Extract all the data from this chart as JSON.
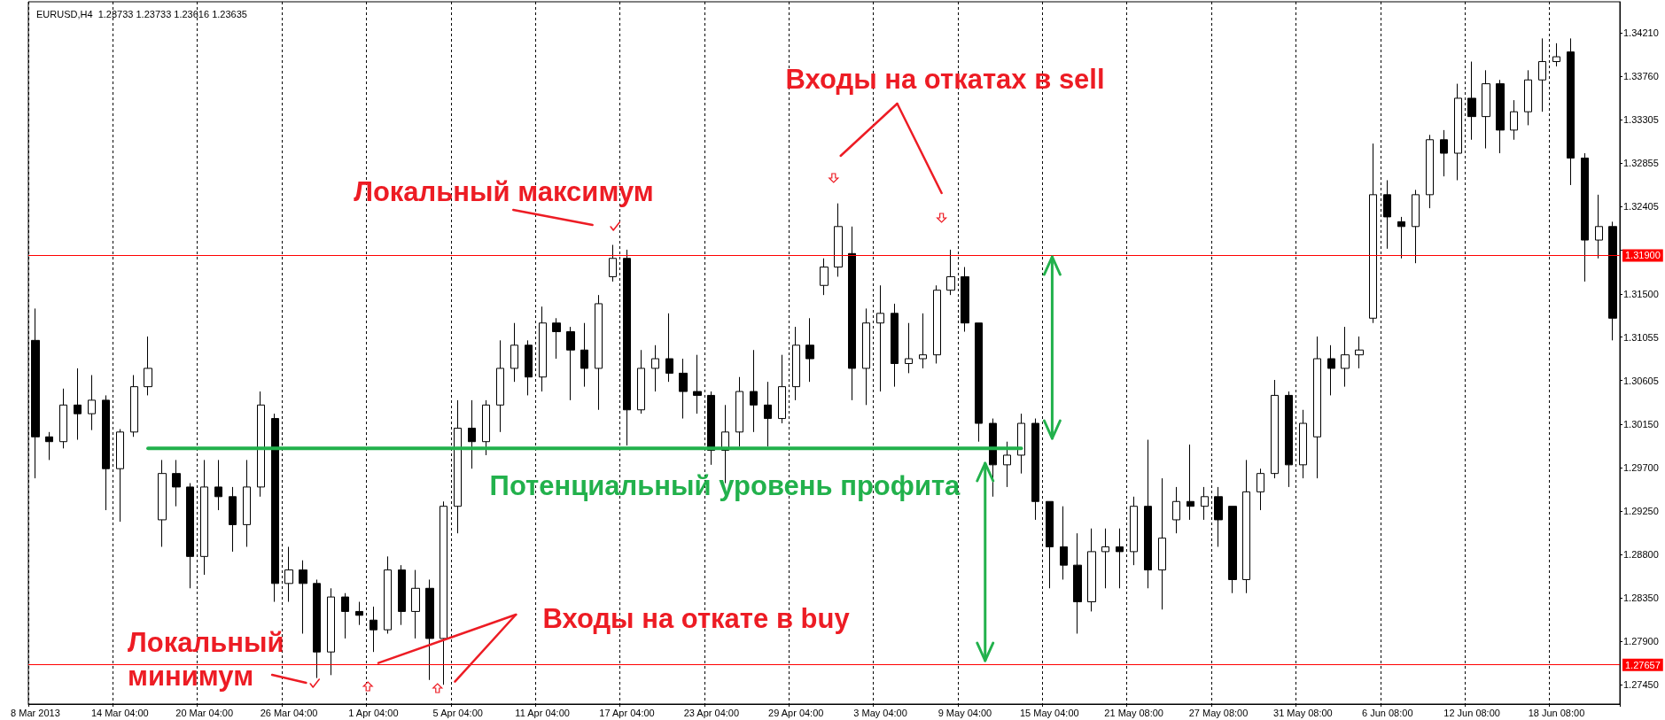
{
  "chart_data": {
    "type": "candlestick",
    "title": "EURUSD,H4  1.23733 1.23733 1.23616 1.23635",
    "categories": [
      "8 Mar 2013",
      null,
      null,
      null,
      null,
      null,
      "14 Mar 04:00",
      null,
      null,
      null,
      null,
      null,
      "20 Mar 04:00",
      null,
      null,
      null,
      null,
      null,
      "26 Mar 04:00",
      null,
      null,
      null,
      null,
      null,
      "1 Apr 04:00",
      null,
      null,
      null,
      null,
      null,
      "5 Apr 04:00",
      null,
      null,
      null,
      null,
      null,
      "11 Apr 04:00",
      null,
      null,
      null,
      null,
      null,
      "17 Apr 04:00",
      null,
      null,
      null,
      null,
      null,
      "23 Apr 04:00",
      null,
      null,
      null,
      null,
      null,
      "29 Apr 04:00",
      null,
      null,
      null,
      null,
      null,
      "3 May 04:00",
      null,
      null,
      null,
      null,
      null,
      "9 May 04:00",
      null,
      null,
      null,
      null,
      null,
      "15 May 04:00",
      null,
      null,
      null,
      null,
      null,
      "21 May 08:00",
      null,
      null,
      null,
      null,
      null,
      "27 May 08:00",
      null,
      null,
      null,
      null,
      null,
      "31 May 08:00",
      null,
      null,
      null,
      null,
      null,
      "6 Jun 08:00",
      null,
      null,
      null,
      null,
      null,
      "12 Jun 08:00",
      null,
      null,
      null,
      null,
      null,
      "18 Jun 08:00",
      null,
      null,
      null,
      null
    ],
    "series": [
      {
        "color": "#000000",
        "ohlc": [
          [
            1.3102,
            1.3135,
            1.2959,
            1.3002
          ],
          [
            1.3002,
            1.3007,
            1.2978,
            1.2997
          ],
          [
            1.2997,
            1.3052,
            1.299,
            1.3035
          ],
          [
            1.3035,
            1.3073,
            1.2999,
            1.3026
          ],
          [
            1.3026,
            1.3066,
            1.3009,
            1.304
          ],
          [
            1.304,
            1.3045,
            1.2926,
            1.2969
          ],
          [
            1.2969,
            1.301,
            1.2914,
            1.3007
          ],
          [
            1.3007,
            1.3066,
            1.3002,
            1.3054
          ],
          [
            1.3054,
            1.3106,
            1.3045,
            1.3073
          ],
          [
            1.2916,
            1.2978,
            1.2888,
            1.2964
          ],
          [
            1.2964,
            1.2978,
            1.293,
            1.295
          ],
          [
            1.295,
            1.2954,
            1.2845,
            1.2878
          ],
          [
            1.2878,
            1.2978,
            1.2859,
            1.295
          ],
          [
            1.295,
            1.2978,
            1.2926,
            1.294
          ],
          [
            1.294,
            1.295,
            1.2883,
            1.2911
          ],
          [
            1.2911,
            1.2978,
            1.2888,
            1.295
          ],
          [
            1.295,
            1.3049,
            1.294,
            1.3035
          ],
          [
            1.3021,
            1.3026,
            1.2831,
            1.285
          ],
          [
            1.285,
            1.2888,
            1.2831,
            1.2864
          ],
          [
            1.2864,
            1.2874,
            1.2798,
            1.285
          ],
          [
            1.285,
            1.2854,
            1.2752,
            1.2779
          ],
          [
            1.2779,
            1.2845,
            1.2755,
            1.2836
          ],
          [
            1.2836,
            1.284,
            1.2793,
            1.2821
          ],
          [
            1.2821,
            1.2831,
            1.2807,
            1.2817
          ],
          [
            1.2812,
            1.2826,
            1.2779,
            1.2802
          ],
          [
            1.2802,
            1.2878,
            1.2798,
            1.2864
          ],
          [
            1.2864,
            1.2869,
            1.2807,
            1.2821
          ],
          [
            1.2821,
            1.2864,
            1.2793,
            1.2845
          ],
          [
            1.2845,
            1.2854,
            1.275,
            1.2793
          ],
          [
            1.2793,
            1.2935,
            1.2745,
            1.293
          ],
          [
            1.293,
            1.304,
            1.2902,
            1.3011
          ],
          [
            1.3011,
            1.304,
            1.2969,
            1.2997
          ],
          [
            1.2997,
            1.304,
            1.2983,
            1.3035
          ],
          [
            1.3035,
            1.3102,
            1.3007,
            1.3073
          ],
          [
            1.3073,
            1.312,
            1.3059,
            1.3097
          ],
          [
            1.3097,
            1.3102,
            1.3045,
            1.3064
          ],
          [
            1.3064,
            1.3137,
            1.3049,
            1.312
          ],
          [
            1.312,
            1.3125,
            1.3083,
            1.3111
          ],
          [
            1.3111,
            1.3116,
            1.304,
            1.3092
          ],
          [
            1.3092,
            1.312,
            1.3054,
            1.3073
          ],
          [
            1.3073,
            1.3149,
            1.303,
            1.314
          ],
          [
            1.3168,
            1.3201,
            1.3163,
            1.3187
          ],
          [
            1.3187,
            1.3196,
            1.2993,
            1.303
          ],
          [
            1.303,
            1.3092,
            1.3026,
            1.3073
          ],
          [
            1.3073,
            1.3097,
            1.3049,
            1.3083
          ],
          [
            1.3083,
            1.313,
            1.3059,
            1.3068
          ],
          [
            1.3068,
            1.3083,
            1.3021,
            1.3049
          ],
          [
            1.3049,
            1.3087,
            1.3026,
            1.3045
          ],
          [
            1.3045,
            1.3049,
            1.2973,
            1.2988
          ],
          [
            1.2988,
            1.3035,
            1.2954,
            1.3007
          ],
          [
            1.3007,
            1.3064,
            1.2992,
            1.3049
          ],
          [
            1.3049,
            1.3092,
            1.3007,
            1.3035
          ],
          [
            1.3035,
            1.3059,
            1.2992,
            1.3021
          ],
          [
            1.3021,
            1.3087,
            1.3016,
            1.3054
          ],
          [
            1.3054,
            1.3116,
            1.304,
            1.3097
          ],
          [
            1.3097,
            1.3125,
            1.3059,
            1.3083
          ],
          [
            1.3159,
            1.3187,
            1.3149,
            1.3178
          ],
          [
            1.3178,
            1.3244,
            1.3168,
            1.322
          ],
          [
            1.3192,
            1.322,
            1.304,
            1.3073
          ],
          [
            1.3073,
            1.3135,
            1.3035,
            1.312
          ],
          [
            1.312,
            1.3159,
            1.3049,
            1.313
          ],
          [
            1.313,
            1.314,
            1.3054,
            1.3078
          ],
          [
            1.3078,
            1.312,
            1.3068,
            1.3083
          ],
          [
            1.3083,
            1.313,
            1.3073,
            1.3087
          ],
          [
            1.3087,
            1.3159,
            1.3078,
            1.3154
          ],
          [
            1.3154,
            1.3196,
            1.3149,
            1.3168
          ],
          [
            1.3168,
            1.3178,
            1.3111,
            1.312
          ],
          [
            1.312,
            1.312,
            1.2997,
            1.3016
          ],
          [
            1.3016,
            1.3021,
            1.294,
            1.2973
          ],
          [
            1.2973,
            1.2997,
            1.295,
            1.2983
          ],
          [
            1.2983,
            1.3026,
            1.2964,
            1.3016
          ],
          [
            1.3016,
            1.3021,
            1.2916,
            1.2935
          ],
          [
            1.2935,
            1.2935,
            1.2845,
            1.2888
          ],
          [
            1.2888,
            1.293,
            1.2854,
            1.2869
          ],
          [
            1.2869,
            1.2902,
            1.2798,
            1.2831
          ],
          [
            1.2831,
            1.2907,
            1.2821,
            1.2883
          ],
          [
            1.2883,
            1.2907,
            1.2845,
            1.2888
          ],
          [
            1.2888,
            1.2907,
            1.2845,
            1.2883
          ],
          [
            1.2883,
            1.294,
            1.2869,
            1.293
          ],
          [
            1.293,
            1.2999,
            1.2845,
            1.2864
          ],
          [
            1.2864,
            1.2959,
            1.2823,
            1.2897
          ],
          [
            1.2916,
            1.295,
            1.2902,
            1.2935
          ],
          [
            1.2935,
            1.2994,
            1.2916,
            1.293
          ],
          [
            1.293,
            1.295,
            1.2916,
            1.294
          ],
          [
            1.294,
            1.295,
            1.2888,
            1.2916
          ],
          [
            1.293,
            1.293,
            1.284,
            1.2854
          ],
          [
            1.2854,
            1.2978,
            1.284,
            1.2945
          ],
          [
            1.2945,
            1.2969,
            1.2926,
            1.2964
          ],
          [
            1.2964,
            1.3061,
            1.2959,
            1.3045
          ],
          [
            1.3045,
            1.3049,
            1.295,
            1.2973
          ],
          [
            1.2973,
            1.303,
            1.2959,
            1.3016
          ],
          [
            1.3002,
            1.3106,
            1.2959,
            1.3083
          ],
          [
            1.3083,
            1.3097,
            1.3045,
            1.3073
          ],
          [
            1.3073,
            1.3116,
            1.3054,
            1.3087
          ],
          [
            1.3087,
            1.3106,
            1.3073,
            1.3092
          ],
          [
            1.3125,
            1.3306,
            1.312,
            1.3253
          ],
          [
            1.3253,
            1.3268,
            1.3197,
            1.323
          ],
          [
            1.3225,
            1.323,
            1.3187,
            1.322
          ],
          [
            1.322,
            1.3258,
            1.3182,
            1.3253
          ],
          [
            1.3253,
            1.3315,
            1.3239,
            1.331
          ],
          [
            1.331,
            1.332,
            1.3272,
            1.3296
          ],
          [
            1.3296,
            1.3368,
            1.3268,
            1.3353
          ],
          [
            1.3353,
            1.3391,
            1.331,
            1.3334
          ],
          [
            1.3334,
            1.3382,
            1.3301,
            1.3368
          ],
          [
            1.3368,
            1.3372,
            1.3296,
            1.332
          ],
          [
            1.332,
            1.3351,
            1.331,
            1.3339
          ],
          [
            1.3339,
            1.3382,
            1.3325,
            1.3372
          ],
          [
            1.3372,
            1.3415,
            1.3339,
            1.3391
          ],
          [
            1.3391,
            1.341,
            1.3386,
            1.3396
          ],
          [
            1.3401,
            1.3415,
            1.3263,
            1.3291
          ],
          [
            1.3291,
            1.3296,
            1.3163,
            1.3206
          ],
          [
            1.3206,
            1.3253,
            1.3187,
            1.322
          ],
          [
            1.322,
            1.3225,
            1.3102,
            1.3125
          ]
        ]
      },
      {
        "type": "line",
        "color": "#22b14c",
        "values": [
          null,
          null,
          null,
          null,
          null,
          null,
          null,
          null,
          1.299,
          1.299,
          1.299,
          1.299,
          1.299,
          1.299,
          1.299,
          1.299,
          1.299,
          1.299,
          1.299,
          1.299,
          1.299,
          1.299,
          1.299,
          1.299,
          1.299,
          1.299,
          1.299,
          1.299,
          1.299,
          1.299,
          1.299,
          1.299,
          1.299,
          1.299,
          1.299,
          1.299,
          1.299,
          1.299,
          1.299,
          1.299,
          1.299,
          1.299,
          1.299,
          1.299,
          1.299,
          1.299,
          1.299,
          1.299,
          1.299,
          1.299,
          1.299,
          1.299,
          1.299,
          1.299,
          1.299,
          1.299,
          1.299,
          1.299,
          1.299,
          1.299,
          1.299,
          1.299,
          1.299,
          1.299,
          1.299,
          1.299,
          1.299,
          1.299,
          1.299,
          1.299,
          1.299,
          null,
          null,
          null,
          null,
          null,
          null,
          null,
          null,
          null,
          null,
          null,
          null,
          null,
          null,
          null,
          null,
          null,
          null,
          null,
          null,
          null,
          null,
          null,
          null,
          null,
          null,
          null,
          null,
          null,
          null,
          null,
          null,
          null,
          null,
          null,
          null,
          null,
          null,
          null,
          null,
          null,
          null
        ]
      }
    ],
    "ylim": [
      1.2725,
      1.3453
    ],
    "yticks": [
      {
        "value": 1.2745,
        "label": "1.27450"
      },
      {
        "value": 1.279,
        "label": "1.27900"
      },
      {
        "value": 1.2835,
        "label": "1.28350"
      },
      {
        "value": 1.288,
        "label": "1.28800"
      },
      {
        "value": 1.2925,
        "label": "1.29250"
      },
      {
        "value": 1.297,
        "label": "1.29700"
      },
      {
        "value": 1.3015,
        "label": "1.30150"
      },
      {
        "value": 1.30605,
        "label": "1.30605"
      },
      {
        "value": 1.31055,
        "label": "1.31055"
      },
      {
        "value": 1.315,
        "label": "1.31500"
      },
      {
        "value": 1.31955,
        "label": null
      },
      {
        "value": 1.32405,
        "label": "1.32405"
      },
      {
        "value": 1.32855,
        "label": "1.32855"
      },
      {
        "value": 1.33305,
        "label": "1.33305"
      },
      {
        "value": 1.3376,
        "label": "1.33760"
      },
      {
        "value": 1.3421,
        "label": "1.34210"
      }
    ],
    "ref_lines": [
      {
        "axis": "y",
        "value": 1.319,
        "label": "1.31900",
        "color": "#ff0000"
      },
      {
        "axis": "y",
        "value": 1.27657,
        "label": "1.27657",
        "color": "#ff0000"
      }
    ],
    "annotations": [
      "Входы на откатах в sell",
      "Локальный максимум",
      "Потенциальный уровень профита",
      "Локальный\nминимум",
      {
        "text": "Входы на откате в buy",
        "y": 1.27657
      }
    ],
    "grid": "x",
    "marker": "none",
    "line_style": "solid"
  }
}
